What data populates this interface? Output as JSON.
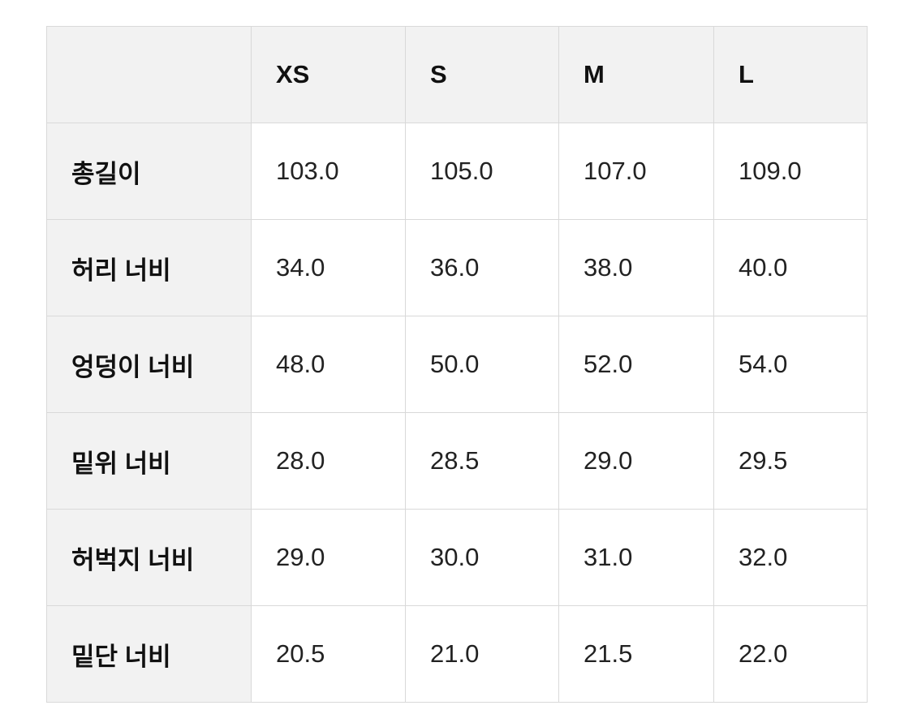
{
  "table": {
    "headers": [
      "",
      "XS",
      "S",
      "M",
      "L"
    ],
    "rows": [
      {
        "label": "총길이",
        "values": [
          "103.0",
          "105.0",
          "107.0",
          "109.0"
        ]
      },
      {
        "label": "허리 너비",
        "values": [
          "34.0",
          "36.0",
          "38.0",
          "40.0"
        ]
      },
      {
        "label": "엉덩이 너비",
        "values": [
          "48.0",
          "50.0",
          "52.0",
          "54.0"
        ]
      },
      {
        "label": "밑위 너비",
        "values": [
          "28.0",
          "28.5",
          "29.0",
          "29.5"
        ]
      },
      {
        "label": "허벅지 너비",
        "values": [
          "29.0",
          "30.0",
          "31.0",
          "32.0"
        ]
      },
      {
        "label": "밑단 너비",
        "values": [
          "20.5",
          "21.0",
          "21.5",
          "22.0"
        ]
      }
    ]
  }
}
